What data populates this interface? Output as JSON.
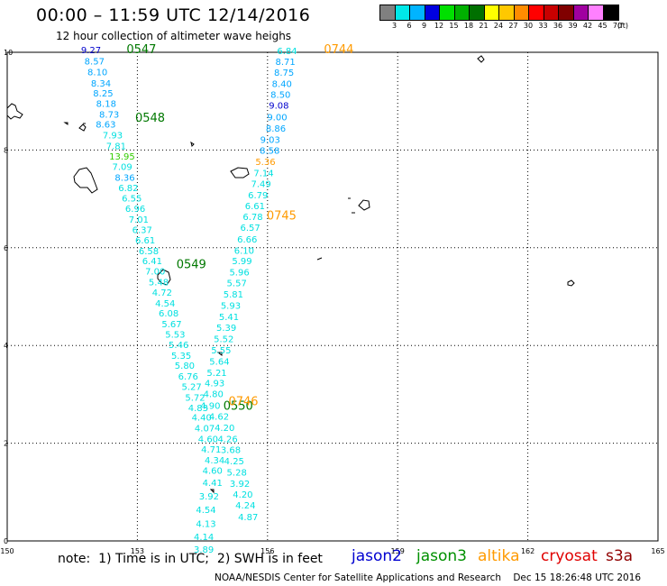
{
  "header": {
    "title": "00:00 – 11:59 UTC 12/14/2016",
    "subtitle": "12 hour collection of altimeter wave heighs"
  },
  "legend": {
    "colors": [
      "#808080",
      "#00e8e8",
      "#00b4ff",
      "#0000e0",
      "#00e000",
      "#00b000",
      "#007000",
      "#ffff00",
      "#ffc800",
      "#ff8c00",
      "#ff0000",
      "#c80000",
      "#800000",
      "#a000a0",
      "#ff80ff",
      "#000000"
    ],
    "labels": [
      "3",
      "6",
      "9",
      "12",
      "15",
      "18",
      "21",
      "24",
      "27",
      "30",
      "33",
      "36",
      "39",
      "42",
      "45",
      "70",
      "(ft)"
    ]
  },
  "axes": {
    "x_ticks": [
      "150",
      "153",
      "156",
      "159",
      "162",
      "165"
    ],
    "y_ticks": [
      "10",
      "8",
      "6",
      "4",
      "2",
      "0"
    ]
  },
  "tracks": {
    "colors": {
      "cyan": "#00e0e0",
      "blue": "#00a6ff",
      "navy": "#0000cc",
      "green": "#33cc00",
      "dkgreen": "#007800",
      "orange": "#ff9a00"
    },
    "time_labels": [
      {
        "text": "0547",
        "color": "#007800",
        "lon": 152.75,
        "lat": 9.98
      },
      {
        "text": "0548",
        "color": "#007800",
        "lon": 152.95,
        "lat": 8.58
      },
      {
        "text": "0549",
        "color": "#007800",
        "lon": 153.9,
        "lat": 5.58
      },
      {
        "text": "0550",
        "color": "#007800",
        "lon": 154.98,
        "lat": 2.68
      },
      {
        "text": "0744",
        "color": "#ff9a00",
        "lon": 157.3,
        "lat": 9.98
      },
      {
        "text": "0745",
        "color": "#ff9a00",
        "lon": 155.98,
        "lat": 6.58
      },
      {
        "text": "0746",
        "color": "#ff9a00",
        "lon": 155.1,
        "lat": 2.78
      }
    ],
    "points": [
      {
        "v": "9.27",
        "c": "navy",
        "lon": 151.7,
        "lat": 9.98
      },
      {
        "v": "8.57",
        "c": "blue",
        "lon": 151.78,
        "lat": 9.75
      },
      {
        "v": "8.10",
        "c": "blue",
        "lon": 151.85,
        "lat": 9.53
      },
      {
        "v": "8.34",
        "c": "blue",
        "lon": 151.93,
        "lat": 9.3
      },
      {
        "v": "8.25",
        "c": "blue",
        "lon": 151.98,
        "lat": 9.1
      },
      {
        "v": "8.18",
        "c": "blue",
        "lon": 152.05,
        "lat": 8.88
      },
      {
        "v": "8.73",
        "c": "blue",
        "lon": 152.12,
        "lat": 8.66
      },
      {
        "v": "8.63",
        "c": "blue",
        "lon": 152.04,
        "lat": 8.46
      },
      {
        "v": "7.93",
        "c": "cyan",
        "lon": 152.2,
        "lat": 8.24
      },
      {
        "v": "7.81",
        "c": "cyan",
        "lon": 152.28,
        "lat": 8.02
      },
      {
        "v": "13.95",
        "c": "green",
        "lon": 152.35,
        "lat": 7.8
      },
      {
        "v": "7.09",
        "c": "cyan",
        "lon": 152.42,
        "lat": 7.59
      },
      {
        "v": "8.36",
        "c": "blue",
        "lon": 152.48,
        "lat": 7.37
      },
      {
        "v": "6.82",
        "c": "cyan",
        "lon": 152.56,
        "lat": 7.16
      },
      {
        "v": "6.55",
        "c": "cyan",
        "lon": 152.64,
        "lat": 6.95
      },
      {
        "v": "6.96",
        "c": "cyan",
        "lon": 152.72,
        "lat": 6.73
      },
      {
        "v": "7.01",
        "c": "cyan",
        "lon": 152.8,
        "lat": 6.51
      },
      {
        "v": "6.37",
        "c": "cyan",
        "lon": 152.88,
        "lat": 6.3
      },
      {
        "v": "6.61",
        "c": "cyan",
        "lon": 152.95,
        "lat": 6.09
      },
      {
        "v": "6.58",
        "c": "cyan",
        "lon": 153.03,
        "lat": 5.87
      },
      {
        "v": "6.41",
        "c": "cyan",
        "lon": 153.11,
        "lat": 5.66
      },
      {
        "v": "7.00",
        "c": "cyan",
        "lon": 153.18,
        "lat": 5.45
      },
      {
        "v": "5.48",
        "c": "cyan",
        "lon": 153.26,
        "lat": 5.23
      },
      {
        "v": "4.72",
        "c": "cyan",
        "lon": 153.34,
        "lat": 5.02
      },
      {
        "v": "4.54",
        "c": "cyan",
        "lon": 153.41,
        "lat": 4.8
      },
      {
        "v": "6.08",
        "c": "cyan",
        "lon": 153.49,
        "lat": 4.59
      },
      {
        "v": "5.67",
        "c": "cyan",
        "lon": 153.56,
        "lat": 4.37
      },
      {
        "v": "5.53",
        "c": "cyan",
        "lon": 153.64,
        "lat": 4.16
      },
      {
        "v": "5.46",
        "c": "cyan",
        "lon": 153.72,
        "lat": 3.95
      },
      {
        "v": "5.35",
        "c": "cyan",
        "lon": 153.78,
        "lat": 3.73
      },
      {
        "v": "5.80",
        "c": "cyan",
        "lon": 153.86,
        "lat": 3.52
      },
      {
        "v": "6.76",
        "c": "cyan",
        "lon": 153.94,
        "lat": 3.3
      },
      {
        "v": "5.27",
        "c": "cyan",
        "lon": 154.02,
        "lat": 3.09
      },
      {
        "v": "5.72",
        "c": "cyan",
        "lon": 154.1,
        "lat": 2.87
      },
      {
        "v": "4.83",
        "c": "cyan",
        "lon": 154.17,
        "lat": 2.66
      },
      {
        "v": "4.40",
        "c": "cyan",
        "lon": 154.25,
        "lat": 2.46
      },
      {
        "v": "4.07",
        "c": "cyan",
        "lon": 154.32,
        "lat": 2.24
      },
      {
        "v": "4.60",
        "c": "cyan",
        "lon": 154.4,
        "lat": 2.02
      },
      {
        "v": "4.71",
        "c": "cyan",
        "lon": 154.47,
        "lat": 1.81
      },
      {
        "v": "4.34",
        "c": "cyan",
        "lon": 154.55,
        "lat": 1.59
      },
      {
        "v": "4.60",
        "c": "cyan",
        "lon": 154.5,
        "lat": 1.37
      },
      {
        "v": "4.41",
        "c": "cyan",
        "lon": 154.5,
        "lat": 1.13
      },
      {
        "v": "3.92",
        "c": "cyan",
        "lon": 154.42,
        "lat": 0.85
      },
      {
        "v": "4.54",
        "c": "cyan",
        "lon": 154.35,
        "lat": 0.57
      },
      {
        "v": "4.13",
        "c": "cyan",
        "lon": 154.35,
        "lat": 0.29
      },
      {
        "v": "4.14",
        "c": "cyan",
        "lon": 154.3,
        "lat": 0.02
      },
      {
        "v": "3.89",
        "c": "cyan",
        "lon": 154.3,
        "lat": -0.24
      },
      {
        "v": "6.84",
        "c": "cyan",
        "lon": 156.22,
        "lat": 9.96
      },
      {
        "v": "8.71",
        "c": "blue",
        "lon": 156.18,
        "lat": 9.74
      },
      {
        "v": "8.75",
        "c": "blue",
        "lon": 156.15,
        "lat": 9.52
      },
      {
        "v": "8.40",
        "c": "blue",
        "lon": 156.1,
        "lat": 9.29
      },
      {
        "v": "8.50",
        "c": "blue",
        "lon": 156.07,
        "lat": 9.07
      },
      {
        "v": "9.08",
        "c": "navy",
        "lon": 156.03,
        "lat": 8.85
      },
      {
        "v": "9.00",
        "c": "blue",
        "lon": 155.99,
        "lat": 8.61
      },
      {
        "v": "8.86",
        "c": "blue",
        "lon": 155.96,
        "lat": 8.38
      },
      {
        "v": "9.03",
        "c": "blue",
        "lon": 155.83,
        "lat": 8.15
      },
      {
        "v": "8.58",
        "c": "blue",
        "lon": 155.82,
        "lat": 7.92
      },
      {
        "v": "5.36",
        "c": "orange",
        "lon": 155.72,
        "lat": 7.69
      },
      {
        "v": "7.14",
        "c": "cyan",
        "lon": 155.68,
        "lat": 7.46
      },
      {
        "v": "7.49",
        "c": "cyan",
        "lon": 155.62,
        "lat": 7.24
      },
      {
        "v": "6.79",
        "c": "cyan",
        "lon": 155.55,
        "lat": 7.01
      },
      {
        "v": "6.61",
        "c": "cyan",
        "lon": 155.48,
        "lat": 6.79
      },
      {
        "v": "6.78",
        "c": "cyan",
        "lon": 155.43,
        "lat": 6.57
      },
      {
        "v": "6.57",
        "c": "cyan",
        "lon": 155.37,
        "lat": 6.35
      },
      {
        "v": "6.66",
        "c": "cyan",
        "lon": 155.3,
        "lat": 6.11
      },
      {
        "v": "6.10",
        "c": "cyan",
        "lon": 155.23,
        "lat": 5.88
      },
      {
        "v": "5.99",
        "c": "cyan",
        "lon": 155.18,
        "lat": 5.66
      },
      {
        "v": "5.96",
        "c": "cyan",
        "lon": 155.12,
        "lat": 5.43
      },
      {
        "v": "5.57",
        "c": "cyan",
        "lon": 155.06,
        "lat": 5.21
      },
      {
        "v": "5.81",
        "c": "cyan",
        "lon": 154.98,
        "lat": 4.98
      },
      {
        "v": "5.93",
        "c": "cyan",
        "lon": 154.92,
        "lat": 4.75
      },
      {
        "v": "5.41",
        "c": "cyan",
        "lon": 154.88,
        "lat": 4.52
      },
      {
        "v": "5.39",
        "c": "cyan",
        "lon": 154.82,
        "lat": 4.3
      },
      {
        "v": "5.52",
        "c": "cyan",
        "lon": 154.76,
        "lat": 4.07
      },
      {
        "v": "5.55",
        "c": "cyan",
        "lon": 154.7,
        "lat": 3.84
      },
      {
        "v": "5.64",
        "c": "cyan",
        "lon": 154.66,
        "lat": 3.61
      },
      {
        "v": "5.21",
        "c": "cyan",
        "lon": 154.6,
        "lat": 3.38
      },
      {
        "v": "4.93",
        "c": "cyan",
        "lon": 154.55,
        "lat": 3.16
      },
      {
        "v": "4.80",
        "c": "cyan",
        "lon": 154.52,
        "lat": 2.94
      },
      {
        "v": "4.90",
        "c": "cyan",
        "lon": 154.45,
        "lat": 2.7
      },
      {
        "v": "4.62",
        "c": "cyan",
        "lon": 154.65,
        "lat": 2.48
      },
      {
        "v": "4.20",
        "c": "cyan",
        "lon": 154.78,
        "lat": 2.25
      },
      {
        "v": "4.26",
        "c": "cyan",
        "lon": 154.85,
        "lat": 2.02
      },
      {
        "v": "3.68",
        "c": "cyan",
        "lon": 154.92,
        "lat": 1.8
      },
      {
        "v": "4.25",
        "c": "cyan",
        "lon": 155.0,
        "lat": 1.57
      },
      {
        "v": "5.28",
        "c": "cyan",
        "lon": 155.06,
        "lat": 1.34
      },
      {
        "v": "3.92",
        "c": "cyan",
        "lon": 155.13,
        "lat": 1.11
      },
      {
        "v": "4.20",
        "c": "cyan",
        "lon": 155.2,
        "lat": 0.89
      },
      {
        "v": "4.24",
        "c": "cyan",
        "lon": 155.26,
        "lat": 0.66
      },
      {
        "v": "4.87",
        "c": "cyan",
        "lon": 155.32,
        "lat": 0.42
      }
    ]
  },
  "footer": {
    "note": "note:  1) Time is in UTC;  2) SWH is in feet",
    "credit": "NOAA/NESDIS Center for Satellite Applications and Research    Dec 15 18:26:48 UTC 2016"
  },
  "satellites": [
    {
      "name": "jason2",
      "color": "#0000d0"
    },
    {
      "name": "jason3",
      "color": "#009000"
    },
    {
      "name": "altika",
      "color": "#ff9a00"
    },
    {
      "name": "cryosat",
      "color": "#e00000"
    },
    {
      "name": "s3a",
      "color": "#900000"
    }
  ]
}
